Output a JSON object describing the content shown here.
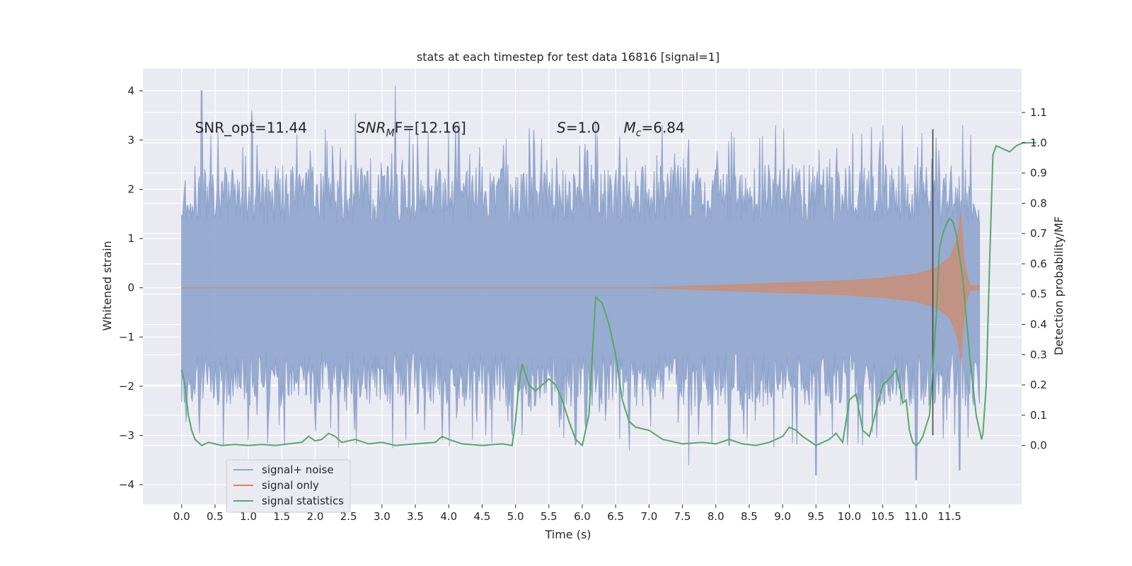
{
  "colors": {
    "background": "#eaeaf2",
    "grid": "#ffffff",
    "noise": "#8fa4cc",
    "signal": "#dd8452",
    "statistic": "#55a868",
    "vline": "#444444"
  },
  "chart_data": {
    "type": "line",
    "title": "stats at each timestep for test data 16816 [signal=1]",
    "xlabel": "Time (s)",
    "ylabel_left": "Whitened strain",
    "ylabel_right": "Detection probability/MF",
    "xlim": [
      -0.58,
      12.58
    ],
    "ylim_left": [
      -4.4,
      4.45
    ],
    "ylim_right": [
      -0.195,
      1.245
    ],
    "x_ticks": [
      "0.0",
      "0.5",
      "1.0",
      "1.5",
      "2.0",
      "2.5",
      "3.0",
      "3.5",
      "4.0",
      "4.5",
      "5.0",
      "5.5",
      "6.0",
      "6.5",
      "7.0",
      "7.5",
      "8.0",
      "8.5",
      "9.0",
      "9.5",
      "10.0",
      "10.5",
      "11.0",
      "11.5"
    ],
    "y_ticks_left": [
      "4",
      "3",
      "2",
      "1",
      "0",
      "−1",
      "−2",
      "−3",
      "−4"
    ],
    "y_ticks_right": [
      "1.1",
      "1.0",
      "0.9",
      "0.8",
      "0.7",
      "0.6",
      "0.5",
      "0.4",
      "0.3",
      "0.2",
      "0.1",
      "0.0"
    ],
    "grid": true,
    "legend_position": "lower-left",
    "annotations": [
      {
        "key": "snr_opt",
        "text": "SNR_opt=11.44",
        "x": 0.2
      },
      {
        "key": "snr_mf",
        "base": "SNR",
        "sub": "M",
        "rest": "F=[12.16]",
        "x": 2.62
      },
      {
        "key": "s",
        "base": "S",
        "rest": "=1.0",
        "x": 5.62
      },
      {
        "key": "mc",
        "base": "M",
        "sub": "c",
        "rest": "=6.84",
        "x": 6.62
      }
    ],
    "annotation_y": 3.25,
    "detection_time": 11.25,
    "detection_line_range": [
      -3.0,
      3.22
    ],
    "series": [
      {
        "name": "signal+ noise",
        "kind": "noise_band",
        "x_start": 0.0,
        "x_end": 11.95,
        "upper_peaks": [
          [
            0.3,
            4.0
          ],
          [
            3.2,
            4.1
          ],
          [
            1.05,
            3.6
          ],
          [
            2.6,
            3.55
          ],
          [
            6.2,
            3.4
          ],
          [
            4.1,
            3.3
          ],
          [
            11.7,
            3.3
          ],
          [
            8.9,
            3.3
          ],
          [
            10.5,
            3.3
          ],
          [
            7.2,
            3.3
          ]
        ],
        "lower_peaks": [
          [
            11.0,
            -3.9
          ],
          [
            9.5,
            -3.8
          ],
          [
            11.65,
            -3.7
          ],
          [
            7.6,
            -3.6
          ],
          [
            6.7,
            -3.3
          ],
          [
            8.2,
            -3.2
          ],
          [
            1.0,
            -3.1
          ],
          [
            5.9,
            -3.2
          ],
          [
            10.2,
            -3.2
          ],
          [
            3.9,
            -3.1
          ]
        ]
      },
      {
        "name": "signal only",
        "kind": "chirp",
        "x_start": 0.0,
        "x_end": 11.95,
        "envelope": [
          [
            7.0,
            0.005
          ],
          [
            8.0,
            0.05
          ],
          [
            9.0,
            0.1
          ],
          [
            10.0,
            0.15
          ],
          [
            10.5,
            0.2
          ],
          [
            11.0,
            0.28
          ],
          [
            11.3,
            0.4
          ],
          [
            11.5,
            0.6
          ],
          [
            11.62,
            1.0
          ],
          [
            11.67,
            1.55
          ],
          [
            11.72,
            0.5
          ],
          [
            11.8,
            0.05
          ]
        ]
      },
      {
        "name": "signal statistics",
        "kind": "line",
        "axis": "right",
        "points": [
          [
            0.0,
            0.25
          ],
          [
            0.05,
            0.2
          ],
          [
            0.1,
            0.1
          ],
          [
            0.15,
            0.05
          ],
          [
            0.2,
            0.02
          ],
          [
            0.3,
            0.0
          ],
          [
            0.4,
            0.01
          ],
          [
            0.5,
            0.005
          ],
          [
            0.6,
            0.0
          ],
          [
            0.8,
            0.003
          ],
          [
            1.0,
            0.0
          ],
          [
            1.2,
            0.003
          ],
          [
            1.4,
            0.0
          ],
          [
            1.6,
            0.005
          ],
          [
            1.8,
            0.01
          ],
          [
            1.9,
            0.03
          ],
          [
            2.0,
            0.015
          ],
          [
            2.1,
            0.02
          ],
          [
            2.2,
            0.04
          ],
          [
            2.3,
            0.03
          ],
          [
            2.4,
            0.01
          ],
          [
            2.6,
            0.02
          ],
          [
            2.8,
            0.005
          ],
          [
            3.0,
            0.01
          ],
          [
            3.2,
            0.0
          ],
          [
            3.5,
            0.005
          ],
          [
            3.8,
            0.01
          ],
          [
            3.9,
            0.03
          ],
          [
            4.0,
            0.02
          ],
          [
            4.2,
            0.005
          ],
          [
            4.5,
            0.0
          ],
          [
            4.8,
            0.005
          ],
          [
            4.95,
            0.0
          ],
          [
            5.0,
            0.08
          ],
          [
            5.05,
            0.2
          ],
          [
            5.1,
            0.27
          ],
          [
            5.2,
            0.2
          ],
          [
            5.3,
            0.18
          ],
          [
            5.4,
            0.2
          ],
          [
            5.5,
            0.22
          ],
          [
            5.6,
            0.2
          ],
          [
            5.7,
            0.15
          ],
          [
            5.8,
            0.08
          ],
          [
            5.9,
            0.02
          ],
          [
            6.0,
            0.0
          ],
          [
            6.1,
            0.1
          ],
          [
            6.2,
            0.49
          ],
          [
            6.3,
            0.47
          ],
          [
            6.4,
            0.4
          ],
          [
            6.5,
            0.3
          ],
          [
            6.6,
            0.15
          ],
          [
            6.7,
            0.08
          ],
          [
            6.8,
            0.06
          ],
          [
            7.0,
            0.05
          ],
          [
            7.2,
            0.02
          ],
          [
            7.5,
            0.005
          ],
          [
            7.8,
            0.01
          ],
          [
            8.0,
            0.005
          ],
          [
            8.2,
            0.02
          ],
          [
            8.4,
            0.005
          ],
          [
            8.6,
            0.0
          ],
          [
            8.8,
            0.01
          ],
          [
            9.0,
            0.03
          ],
          [
            9.1,
            0.06
          ],
          [
            9.2,
            0.05
          ],
          [
            9.3,
            0.03
          ],
          [
            9.5,
            0.0
          ],
          [
            9.6,
            0.01
          ],
          [
            9.7,
            0.02
          ],
          [
            9.8,
            0.04
          ],
          [
            9.9,
            0.01
          ],
          [
            10.0,
            0.15
          ],
          [
            10.1,
            0.17
          ],
          [
            10.2,
            0.05
          ],
          [
            10.3,
            0.03
          ],
          [
            10.5,
            0.2
          ],
          [
            10.6,
            0.22
          ],
          [
            10.7,
            0.25
          ],
          [
            10.75,
            0.2
          ],
          [
            10.8,
            0.14
          ],
          [
            10.85,
            0.15
          ],
          [
            10.9,
            0.05
          ],
          [
            10.95,
            0.01
          ],
          [
            11.0,
            0.0
          ],
          [
            11.05,
            0.01
          ],
          [
            11.1,
            0.03
          ],
          [
            11.2,
            0.1
          ],
          [
            11.3,
            0.42
          ],
          [
            11.35,
            0.65
          ],
          [
            11.4,
            0.7
          ],
          [
            11.45,
            0.73
          ],
          [
            11.5,
            0.75
          ],
          [
            11.55,
            0.74
          ],
          [
            11.6,
            0.7
          ],
          [
            11.7,
            0.55
          ],
          [
            11.8,
            0.3
          ],
          [
            11.9,
            0.1
          ],
          [
            11.95,
            0.05
          ],
          [
            11.98,
            0.02
          ],
          [
            12.0,
            0.04
          ],
          [
            12.05,
            0.2
          ],
          [
            12.1,
            0.6
          ],
          [
            12.15,
            0.96
          ],
          [
            12.2,
            0.99
          ],
          [
            12.3,
            0.98
          ],
          [
            12.4,
            0.97
          ],
          [
            12.5,
            0.99
          ],
          [
            12.6,
            1.0
          ],
          [
            12.8,
            1.0
          ]
        ]
      }
    ]
  }
}
